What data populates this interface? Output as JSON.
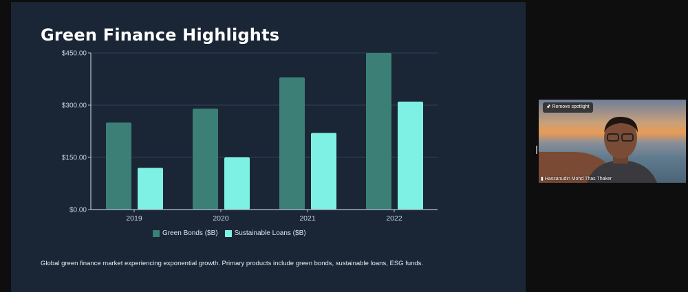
{
  "slide": {
    "title": "Green Finance Highlights",
    "description": "Global green finance market experiencing exponential growth. Primary products include green bonds, sustainable loans, ESG funds."
  },
  "chart_data": {
    "type": "bar",
    "categories": [
      "2019",
      "2020",
      "2021",
      "2022"
    ],
    "series": [
      {
        "name": "Green Bonds ($B)",
        "values": [
          250,
          290,
          380,
          450
        ],
        "color": "#3b7f76"
      },
      {
        "name": "Sustainable Loans ($B)",
        "values": [
          120,
          150,
          220,
          310
        ],
        "color": "#7ff0e4"
      }
    ],
    "y_ticks": [
      "$0.00",
      "$150.00",
      "$300.00",
      "$450.00"
    ],
    "y_tick_values": [
      0,
      150,
      300,
      450
    ],
    "ylim": [
      0,
      450
    ],
    "grid": true,
    "legend": "bottom"
  },
  "video": {
    "spotlight_label": "Remove spotlight",
    "participant_name": "Hassanudin Mohd Thas Thaker"
  }
}
